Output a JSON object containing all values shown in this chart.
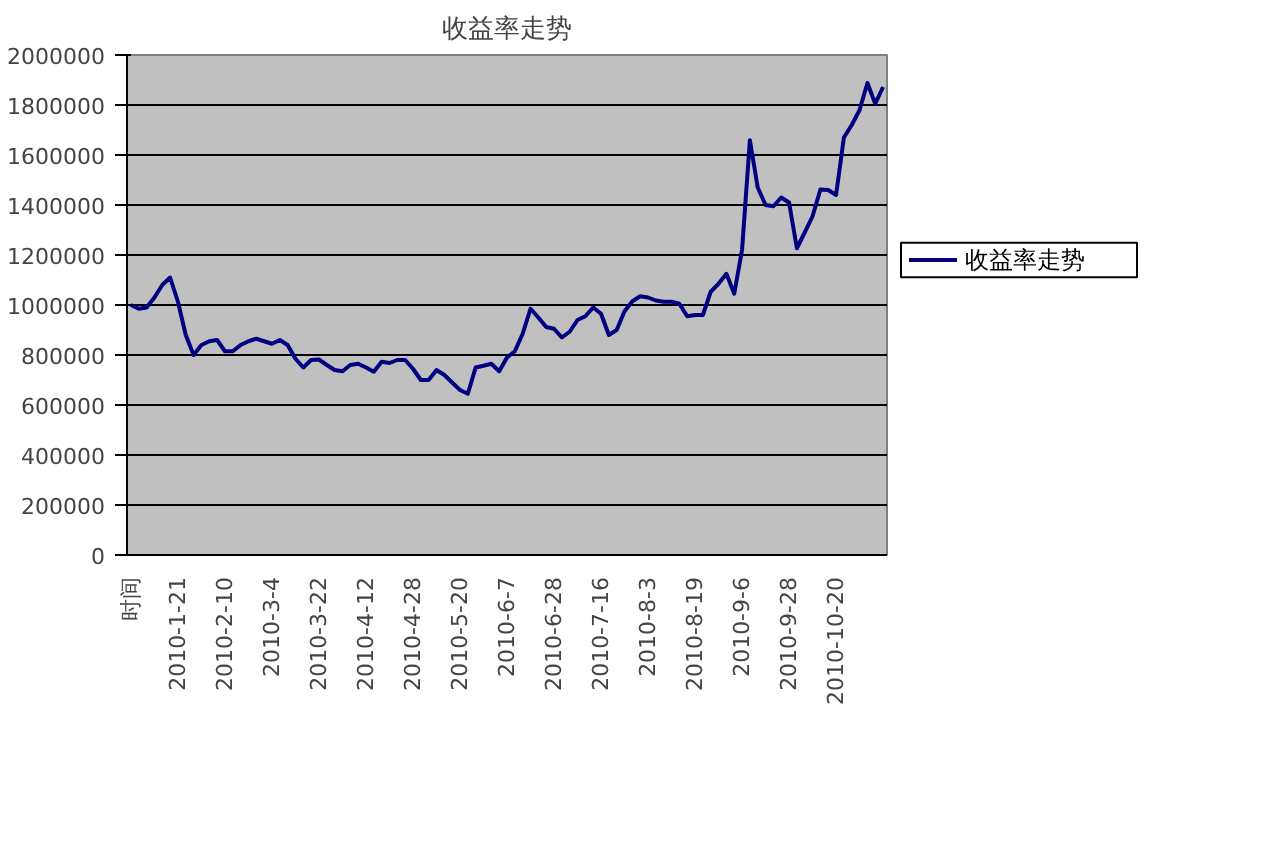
{
  "chart_data": {
    "type": "line",
    "title": "收益率走势",
    "categories": [
      "时间",
      null,
      null,
      null,
      null,
      null,
      "2010-1-21",
      null,
      null,
      null,
      null,
      null,
      "2010-2-10",
      null,
      null,
      null,
      null,
      null,
      "2010-3-4",
      null,
      null,
      null,
      null,
      null,
      "2010-3-22",
      null,
      null,
      null,
      null,
      null,
      "2010-4-12",
      null,
      null,
      null,
      null,
      null,
      "2010-4-28",
      null,
      null,
      null,
      null,
      null,
      "2010-5-20",
      null,
      null,
      null,
      null,
      null,
      "2010-6-7",
      null,
      null,
      null,
      null,
      null,
      "2010-6-28",
      null,
      null,
      null,
      null,
      null,
      "2010-7-16",
      null,
      null,
      null,
      null,
      null,
      "2010-8-3",
      null,
      null,
      null,
      null,
      null,
      "2010-8-19",
      null,
      null,
      null,
      null,
      null,
      "2010-9-6",
      null,
      null,
      null,
      null,
      null,
      "2010-9-28",
      null,
      null,
      null,
      null,
      null,
      "2010-10-20",
      null,
      null,
      null,
      null,
      null,
      null
    ],
    "series": [
      {
        "name": "收益率走势",
        "color": "#000080",
        "values": [
          1000000,
          985000,
          990000,
          1030000,
          1080000,
          1110000,
          1013000,
          880000,
          800000,
          840000,
          855000,
          860000,
          815000,
          815000,
          840000,
          855000,
          865000,
          855000,
          845000,
          860000,
          840000,
          785000,
          750000,
          780000,
          782000,
          760000,
          740000,
          735000,
          760000,
          765000,
          750000,
          733000,
          773000,
          768000,
          780000,
          780000,
          745000,
          700000,
          700000,
          740000,
          720000,
          690000,
          660000,
          645000,
          750000,
          757000,
          765000,
          735000,
          790000,
          815000,
          885000,
          985000,
          950000,
          912000,
          905000,
          870000,
          893000,
          940000,
          955000,
          990000,
          965000,
          880000,
          900000,
          975000,
          1015000,
          1035000,
          1030000,
          1018000,
          1013000,
          1013000,
          1005000,
          955000,
          960000,
          960000,
          1053000,
          1085000,
          1125000,
          1045000,
          1220000,
          1659000,
          1470000,
          1400000,
          1395000,
          1430000,
          1410000,
          1227000,
          1290000,
          1355000,
          1462000,
          1460000,
          1440000,
          1670000,
          1720000,
          1780000,
          1888000,
          1805000,
          1872000
        ]
      }
    ],
    "ylim": [
      0,
      2000000
    ],
    "yticks": [
      0,
      200000,
      400000,
      600000,
      800000,
      1000000,
      1200000,
      1400000,
      1600000,
      1800000,
      2000000
    ],
    "grid": "y",
    "legend": "right",
    "marker": "none",
    "line_style": "solid"
  }
}
